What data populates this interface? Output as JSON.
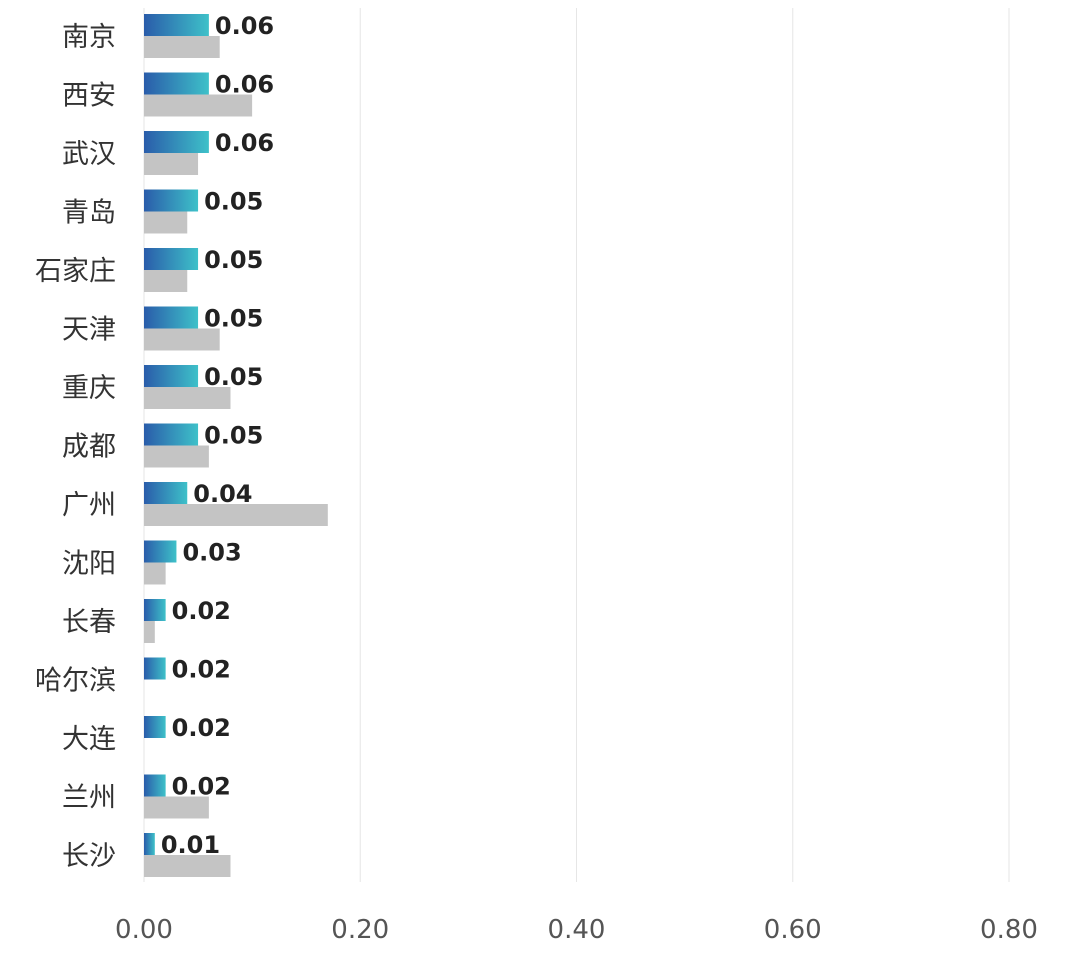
{
  "chart_data": {
    "type": "bar",
    "orientation": "horizontal",
    "categories": [
      "南京",
      "西安",
      "武汉",
      "青岛",
      "石家庄",
      "天津",
      "重庆",
      "成都",
      "广州",
      "沈阳",
      "长春",
      "哈尔滨",
      "大连",
      "兰州",
      "长沙"
    ],
    "series": [
      {
        "values": [
          0.06,
          0.06,
          0.06,
          0.05,
          0.05,
          0.05,
          0.05,
          0.05,
          0.04,
          0.03,
          0.02,
          0.02,
          0.02,
          0.02,
          0.01
        ],
        "data_labels": [
          "0.06",
          "0.06",
          "0.06",
          "0.05",
          "0.05",
          "0.05",
          "0.05",
          "0.05",
          "0.04",
          "0.03",
          "0.02",
          "0.02",
          "0.02",
          "0.02",
          "0.01"
        ],
        "color_start": "#2A5CAA",
        "color_end": "#3EC1C9"
      },
      {
        "values": [
          0.07,
          0.1,
          0.05,
          0.04,
          0.04,
          0.07,
          0.08,
          0.06,
          0.17,
          0.02,
          0.01,
          0,
          0,
          0.06,
          0.08
        ],
        "color": "#C4C4C4"
      }
    ],
    "xlim": [
      0,
      0.8
    ],
    "x_ticks": [
      "0.00",
      "0.20",
      "0.40",
      "0.60",
      "0.80"
    ],
    "x_tick_values": [
      0,
      0.2,
      0.4,
      0.6,
      0.8
    ],
    "grid": true,
    "legend": "none",
    "title": "",
    "xlabel": "",
    "ylabel": ""
  }
}
